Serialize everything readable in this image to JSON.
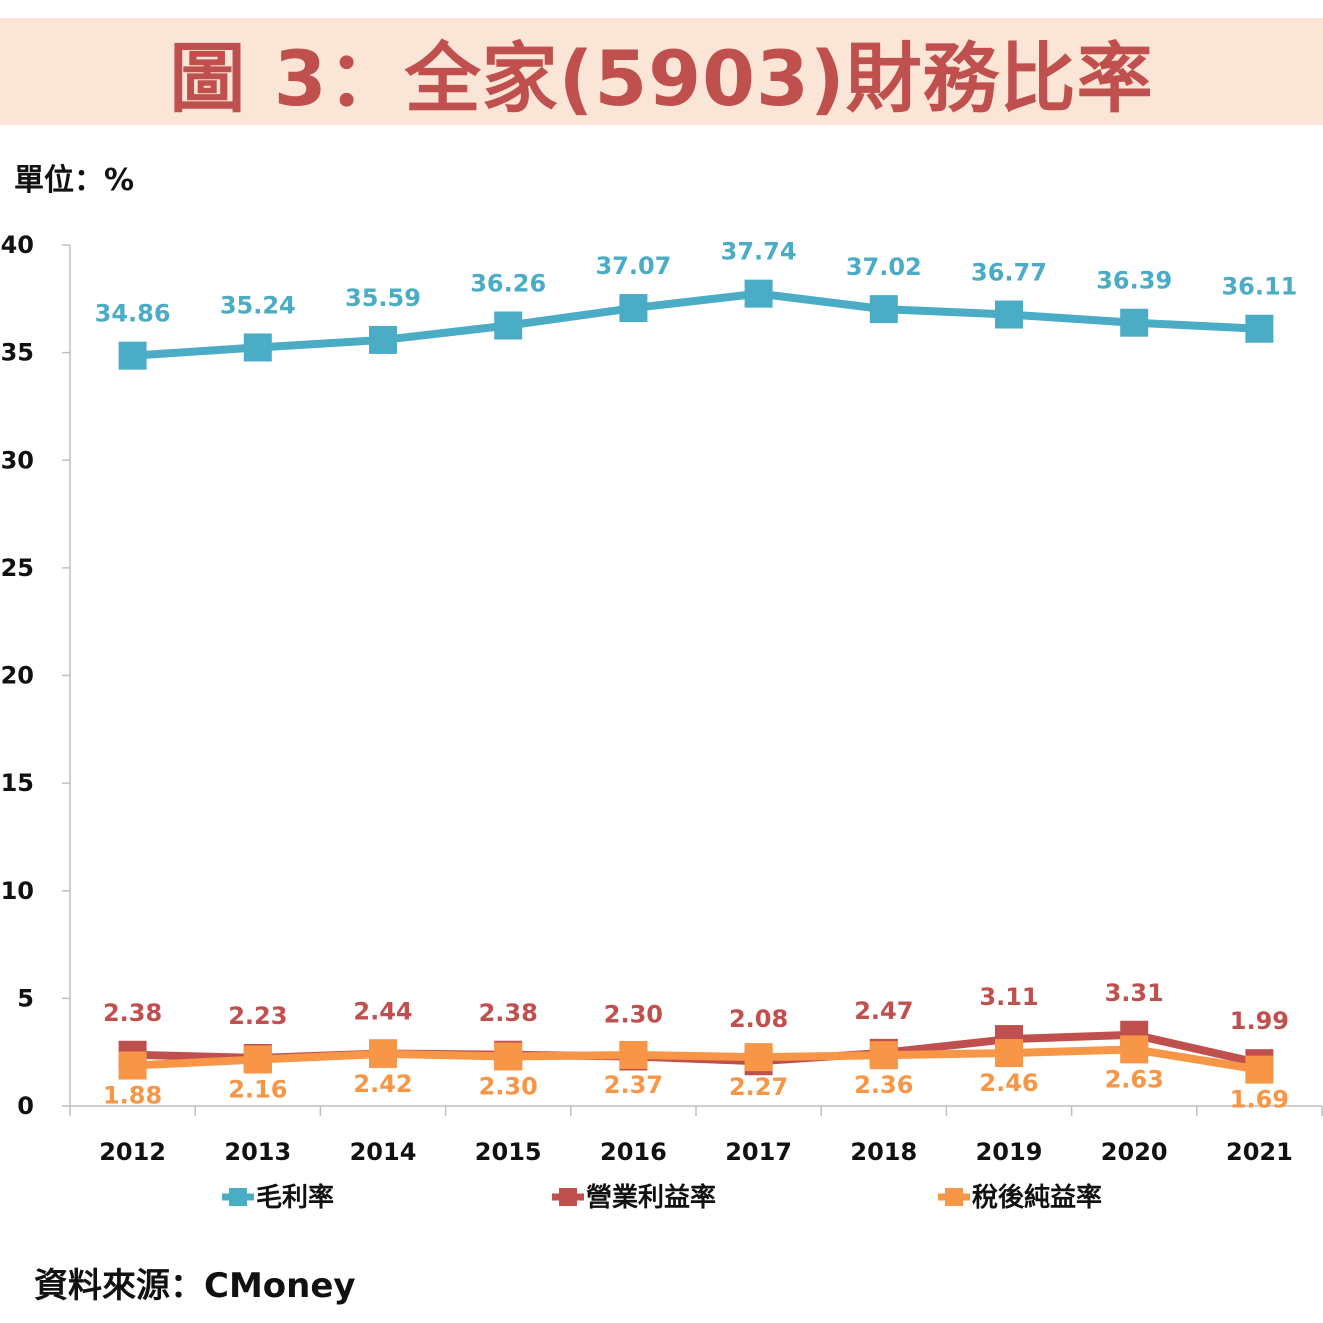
{
  "title": "圖 3：全家(5903)財務比率",
  "unit": "單位：%",
  "source": "資料來源：CMoney",
  "chart_data": {
    "type": "line",
    "categories": [
      "2012",
      "2013",
      "2014",
      "2015",
      "2016",
      "2017",
      "2018",
      "2019",
      "2020",
      "2021"
    ],
    "ylim": [
      0,
      40
    ],
    "yticks": [
      "0",
      "5",
      "10",
      "15",
      "20",
      "25",
      "30",
      "35",
      "40"
    ],
    "grid": false,
    "legend": "bottom",
    "series": [
      {
        "name": "毛利率",
        "color": "#4bacc6",
        "values": [
          34.86,
          35.24,
          35.59,
          36.26,
          37.07,
          37.74,
          37.02,
          36.77,
          36.39,
          36.11
        ],
        "labels": [
          "34.86",
          "35.24",
          "35.59",
          "36.26",
          "37.07",
          "37.74",
          "37.02",
          "36.77",
          "36.39",
          "36.11"
        ]
      },
      {
        "name": "營業利益率",
        "color": "#c0504d",
        "values": [
          2.38,
          2.23,
          2.44,
          2.38,
          2.3,
          2.08,
          2.47,
          3.11,
          3.31,
          1.99
        ],
        "labels": [
          "2.38",
          "2.23",
          "2.44",
          "2.38",
          "2.30",
          "2.08",
          "2.47",
          "3.11",
          "3.31",
          "1.99"
        ]
      },
      {
        "name": "稅後純益率",
        "color": "#f79646",
        "values": [
          1.88,
          2.16,
          2.42,
          2.3,
          2.37,
          2.27,
          2.36,
          2.46,
          2.63,
          1.69
        ],
        "labels": [
          "1.88",
          "2.16",
          "2.42",
          "2.30",
          "2.37",
          "2.27",
          "2.36",
          "2.46",
          "2.63",
          "1.69"
        ]
      }
    ]
  }
}
